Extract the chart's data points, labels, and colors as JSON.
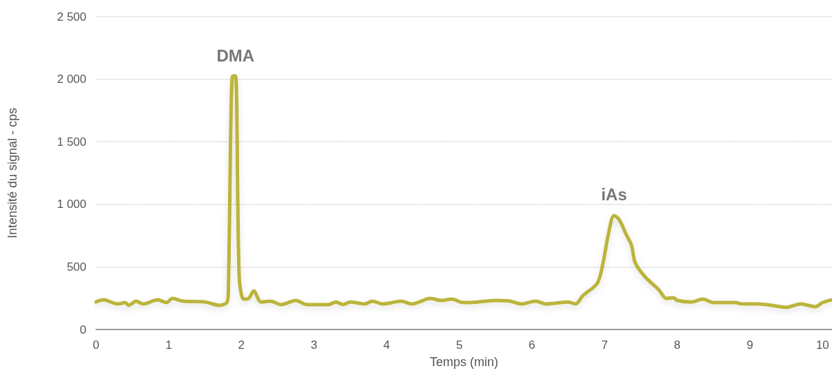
{
  "chart_data": {
    "type": "line",
    "xlabel": "Temps (min)",
    "ylabel": "Intensité du signal - cps",
    "x": [
      0,
      0.1,
      0.3,
      0.4,
      0.45,
      0.55,
      0.65,
      0.85,
      0.97,
      1.05,
      1.2,
      1.5,
      1.7,
      1.8,
      1.82,
      1.88,
      1.92,
      1.97,
      2.03,
      2.1,
      2.17,
      2.27,
      2.4,
      2.55,
      2.75,
      2.9,
      3.2,
      3.3,
      3.4,
      3.5,
      3.7,
      3.8,
      3.95,
      4.2,
      4.35,
      4.45,
      4.6,
      4.75,
      4.9,
      5.05,
      5.25,
      5.5,
      5.7,
      5.85,
      6.05,
      6.2,
      6.5,
      6.6,
      6.7,
      6.9,
      6.98,
      7.05,
      7.13,
      7.2,
      7.3,
      7.37,
      7.42,
      7.55,
      7.75,
      7.85,
      7.95,
      8.0,
      8.2,
      8.35,
      8.5,
      8.8,
      8.9,
      9.1,
      9.3,
      9.5,
      9.7,
      9.8,
      9.9,
      10.0,
      10.13
    ],
    "series": [
      {
        "color": "#bbb43a",
        "values": [
          220,
          237,
          204,
          215,
          193,
          226,
          204,
          237,
          215,
          248,
          226,
          220,
          193,
          215,
          287,
          2025,
          2025,
          425,
          243,
          248,
          309,
          220,
          226,
          199,
          232,
          199,
          199,
          220,
          199,
          220,
          204,
          226,
          204,
          226,
          204,
          220,
          248,
          232,
          243,
          215,
          220,
          232,
          226,
          204,
          226,
          204,
          220,
          204,
          270,
          370,
          535,
          756,
          911,
          878,
          756,
          673,
          535,
          425,
          315,
          248,
          254,
          232,
          220,
          243,
          215,
          215,
          204,
          204,
          193,
          177,
          204,
          193,
          182,
          215,
          237
        ]
      }
    ],
    "xlim": [
      0,
      10.13
    ],
    "xticks": [
      0,
      1,
      2,
      3,
      4,
      5,
      6,
      7,
      8,
      9,
      10
    ],
    "ylim": [
      0,
      2500
    ],
    "yticks": [
      0,
      500,
      {
        "value": 1000,
        "label": "1 000"
      },
      {
        "value": 1500,
        "label": "1 500"
      },
      {
        "value": 2000,
        "label": "2 000"
      },
      {
        "value": 2500,
        "label": "2 500"
      }
    ],
    "grid": "y",
    "marker": "none",
    "line_style": "solid",
    "annotations": [
      {
        "text": "DMA",
        "x": 1.92,
        "y": 2025
      },
      {
        "text": "iAs",
        "x": 7.13,
        "y": 911
      }
    ]
  }
}
